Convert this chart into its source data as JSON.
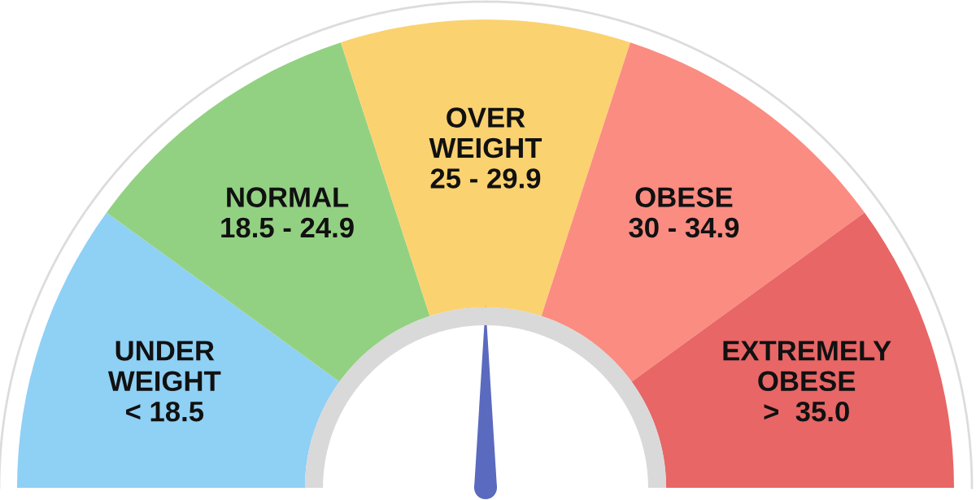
{
  "chart_data": {
    "type": "donut",
    "categories": [
      "UNDER\nWEIGHT\n< 18.5",
      "NORMAL\n18.5 - 24.9",
      "OVER\nWEIGHT\n25 - 29.9",
      "OBESE\n30 - 34.9",
      "EXTREMELY\nOBESE\n>  35.0"
    ],
    "values": [
      20,
      20,
      20,
      20,
      20
    ],
    "colors": [
      "#8fd0f5",
      "#93d182",
      "#fbd270",
      "#fb8c82",
      "#e86666"
    ],
    "needle": "OVER\nWEIGHT\n25 - 29.9"
  }
}
